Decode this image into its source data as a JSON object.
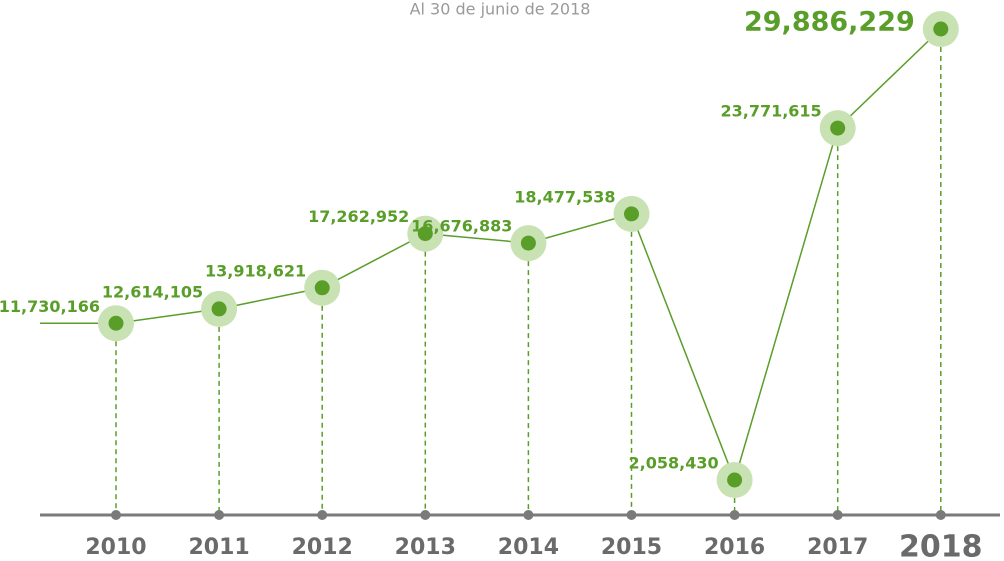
{
  "chart_data": {
    "type": "line",
    "subtitle": "Al 30 de junio de 2018",
    "categories": [
      "2010",
      "2011",
      "2012",
      "2013",
      "2014",
      "2015",
      "2016",
      "2017",
      "2018"
    ],
    "values": [
      11730166,
      12614105,
      13918621,
      17262952,
      16676883,
      18477538,
      2058430,
      23771615,
      29886229
    ],
    "value_labels": [
      "11,730,166",
      "12,614,105",
      "13,918,621",
      "17,262,952",
      "16,676,883",
      "18,477,538",
      "2,058,430",
      "23,771,615",
      "29,886,229"
    ],
    "color": "#5a9e2a"
  }
}
